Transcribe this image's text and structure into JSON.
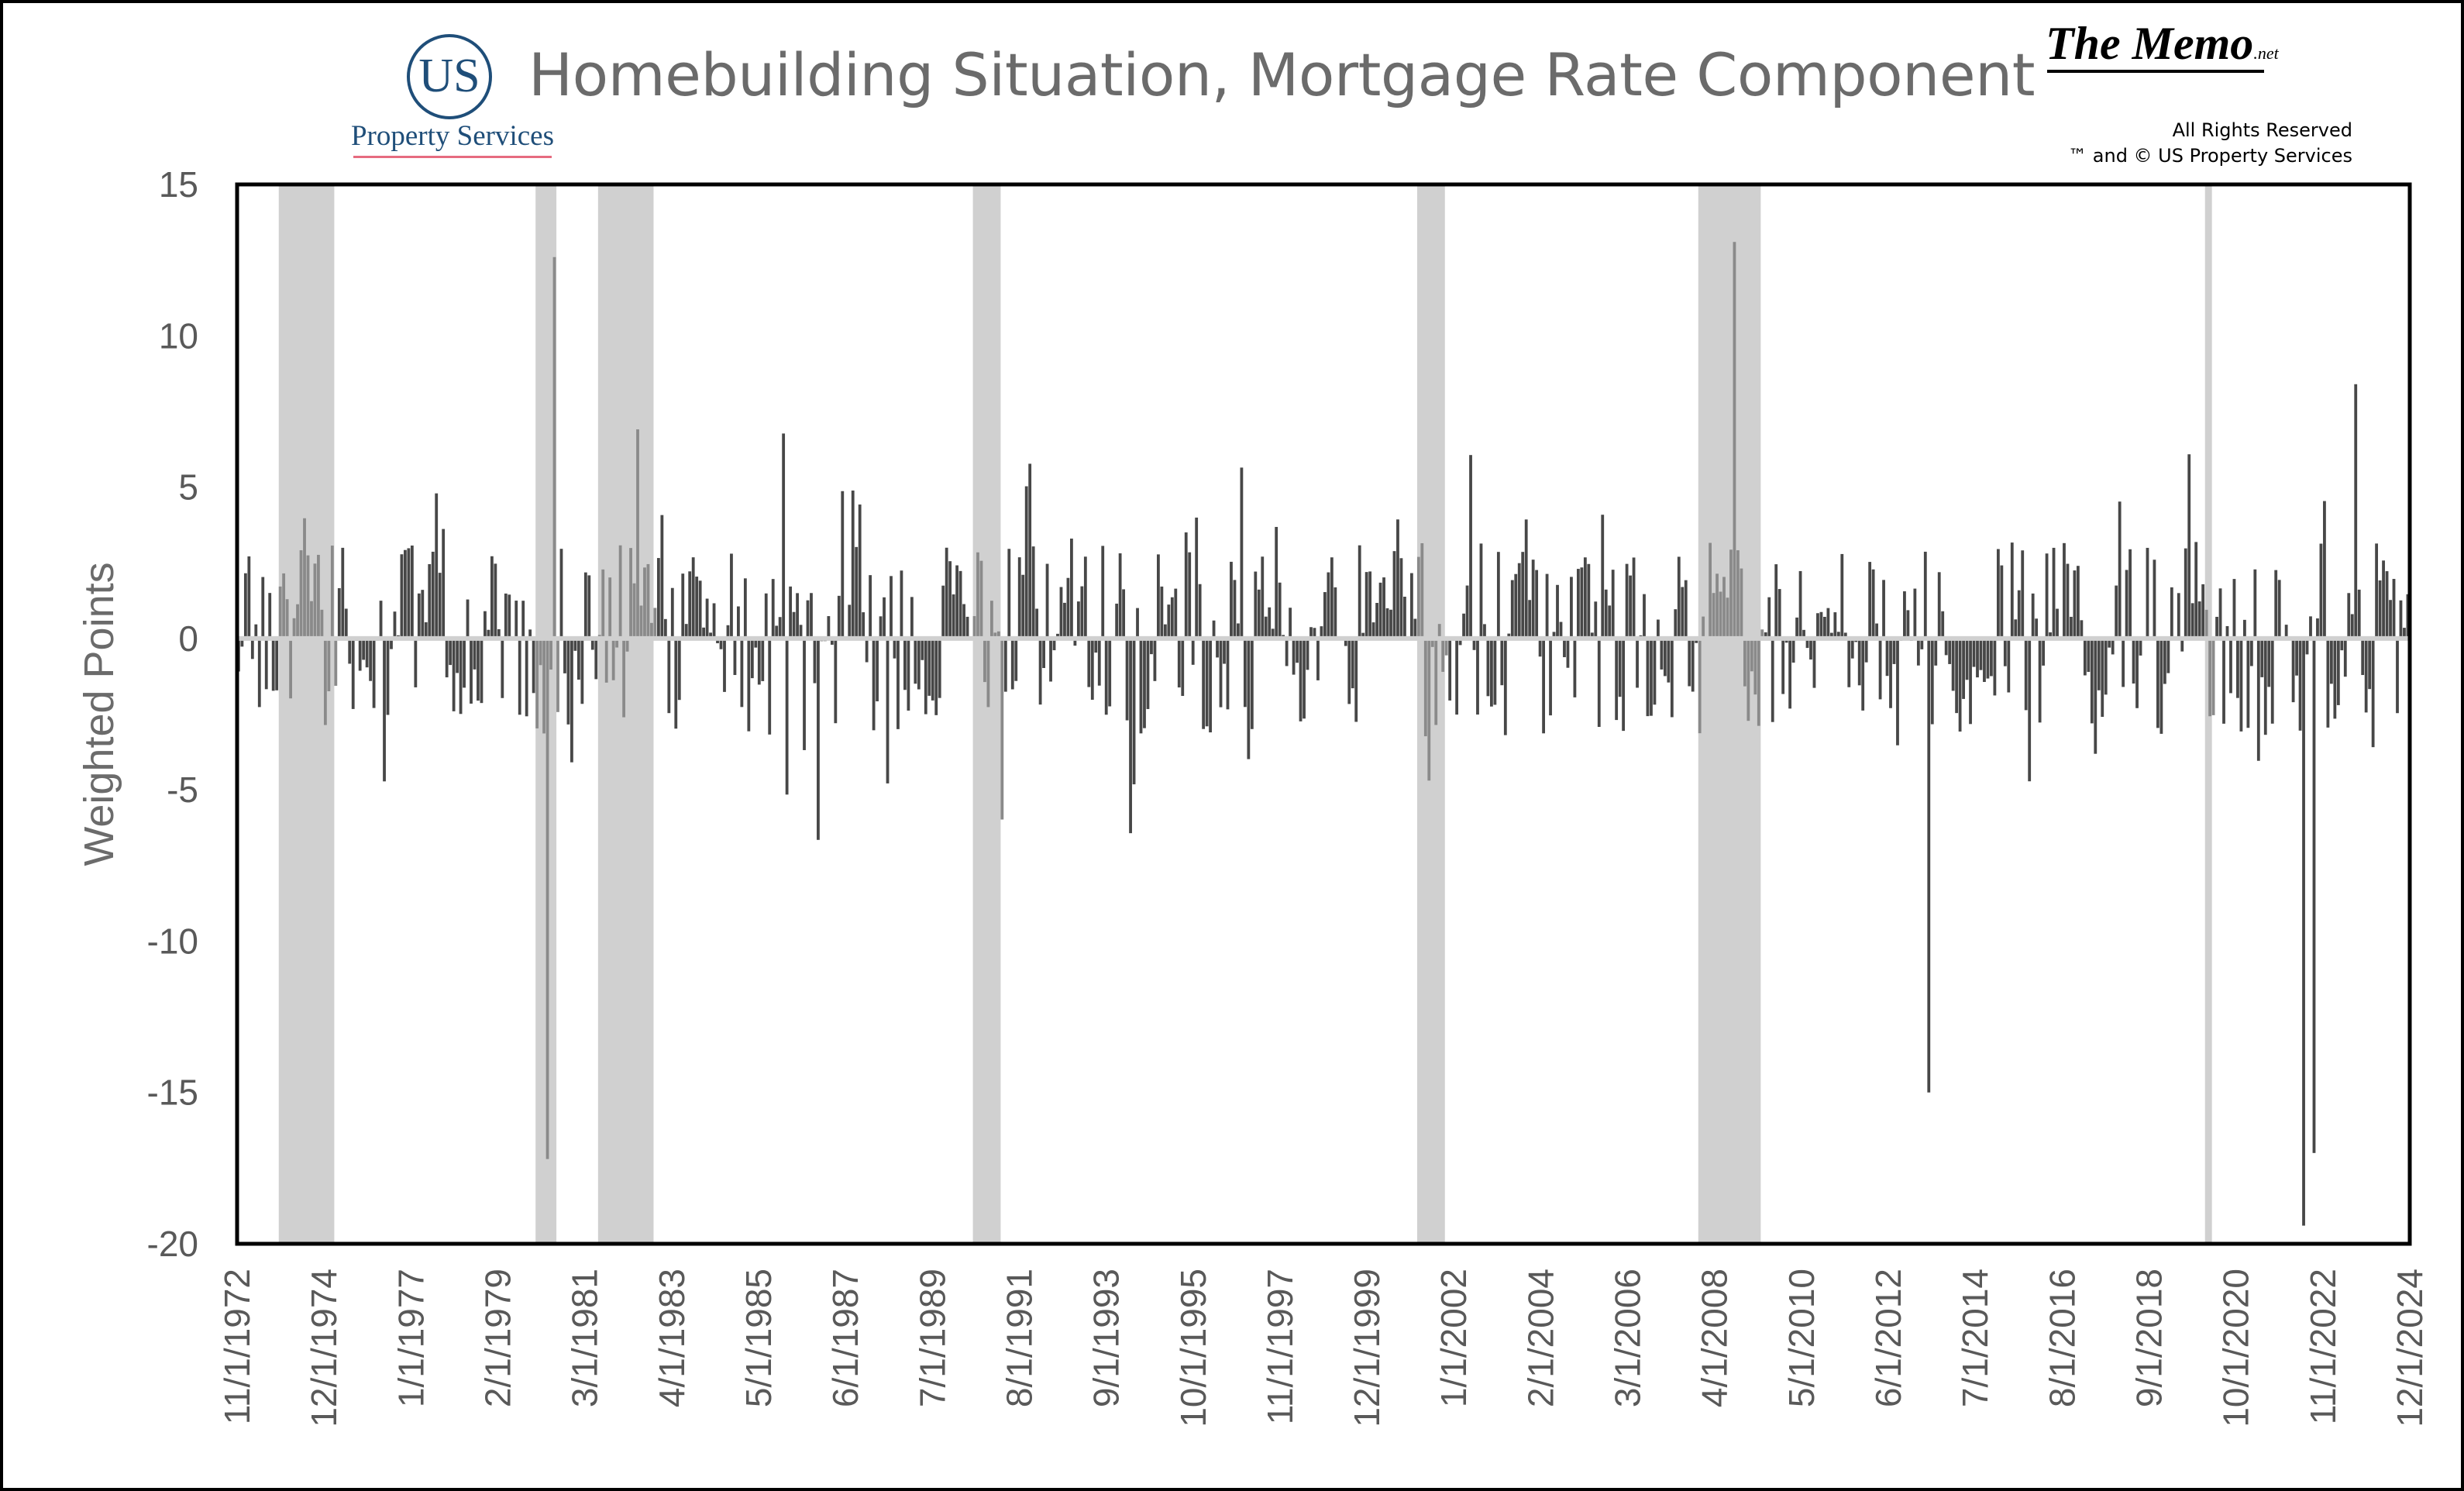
{
  "header": {
    "title": "Homebuilding Situation, Mortgage Rate Component",
    "logo_initials": "US",
    "logo_name": "Property Services",
    "memo": "The Memo",
    "memo_suffix": ".net",
    "rights_line1": "All Rights Reserved",
    "rights_line2": "™ and © US Property Services"
  },
  "colors": {
    "bars": "#474747",
    "bars_in_recession": "#8a8a8a",
    "recession_bands": "#d0d0d0",
    "zero_line": "#d0d0d0",
    "title_text": "#6b6b6b",
    "logo": "#1f4e79"
  },
  "chart_data": {
    "type": "bar",
    "title": "Homebuilding Situation, Mortgage Rate Component",
    "xlabel": "",
    "ylabel": "Weighted Points",
    "ylim": [
      -20,
      15
    ],
    "yticks": [
      15,
      10,
      5,
      0,
      -5,
      -10,
      -15,
      -20
    ],
    "x_range": [
      "1972-11",
      "2025-01"
    ],
    "x_tick_labels": [
      "11/1/1972",
      "12/1/1974",
      "1/1/1977",
      "2/1/1979",
      "3/1/1981",
      "4/1/1983",
      "5/1/1985",
      "6/1/1987",
      "7/1/1989",
      "8/1/1991",
      "9/1/1993",
      "10/1/1995",
      "11/1/1997",
      "12/1/1999",
      "1/1/2002",
      "2/1/2004",
      "3/1/2006",
      "4/1/2008",
      "5/1/2010",
      "6/1/2012",
      "7/1/2014",
      "8/1/2016",
      "9/1/2018",
      "10/1/2020",
      "11/1/2022",
      "12/1/2024"
    ],
    "recession_periods": [
      [
        "1973-11",
        "1975-03"
      ],
      [
        "1980-01",
        "1980-07"
      ],
      [
        "1981-07",
        "1982-11"
      ],
      [
        "1990-07",
        "1991-03"
      ],
      [
        "2001-03",
        "2001-11"
      ],
      [
        "2007-12",
        "2009-06"
      ],
      [
        "2020-02",
        "2020-04"
      ]
    ],
    "highlighted_values": [
      {
        "x": "1980-04",
        "y": -17.2
      },
      {
        "x": "1980-06",
        "y": 12.6
      },
      {
        "x": "2008-10",
        "y": 13.1
      },
      {
        "x": "2013-06",
        "y": -15.0
      },
      {
        "x": "2022-06",
        "y": -19.4
      },
      {
        "x": "2022-09",
        "y": -17.0
      },
      {
        "x": "2023-09",
        "y": 8.4
      }
    ],
    "grid": false,
    "legend": "none"
  }
}
